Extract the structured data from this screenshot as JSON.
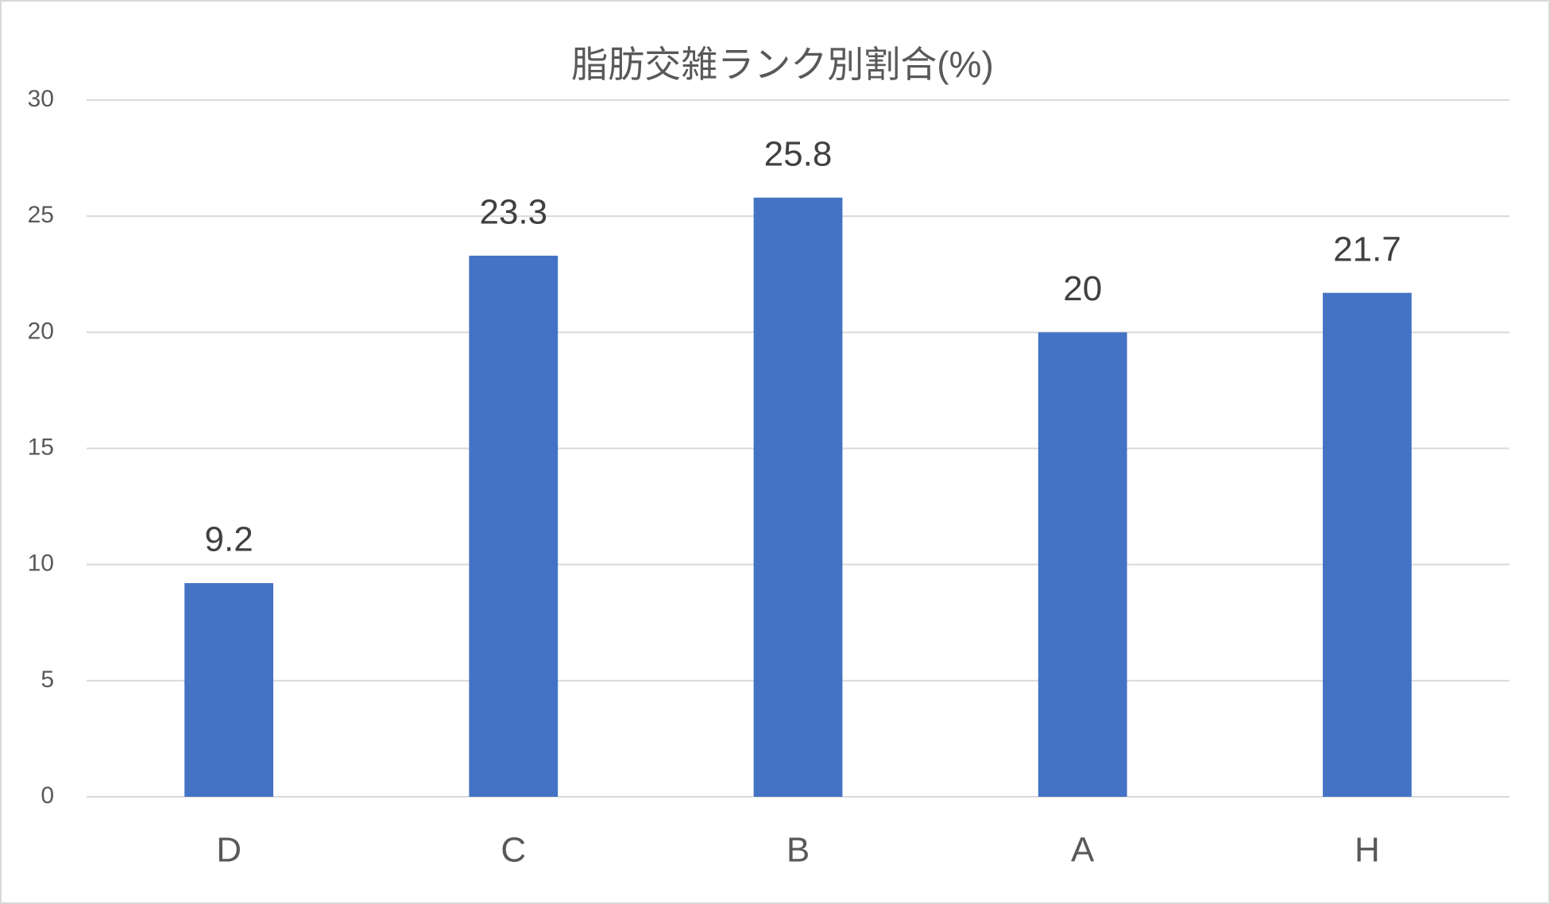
{
  "chart_data": {
    "type": "bar",
    "title": "脂肪交雑ランク別割合(%)",
    "categories": [
      "D",
      "C",
      "B",
      "A",
      "H"
    ],
    "values": [
      9.2,
      23.3,
      25.8,
      20,
      21.7
    ],
    "color": "#4472c4",
    "ylim": [
      0,
      30
    ],
    "yticks": [
      0,
      5,
      10,
      15,
      20,
      25,
      30
    ],
    "grid": true,
    "data_labels": true
  }
}
